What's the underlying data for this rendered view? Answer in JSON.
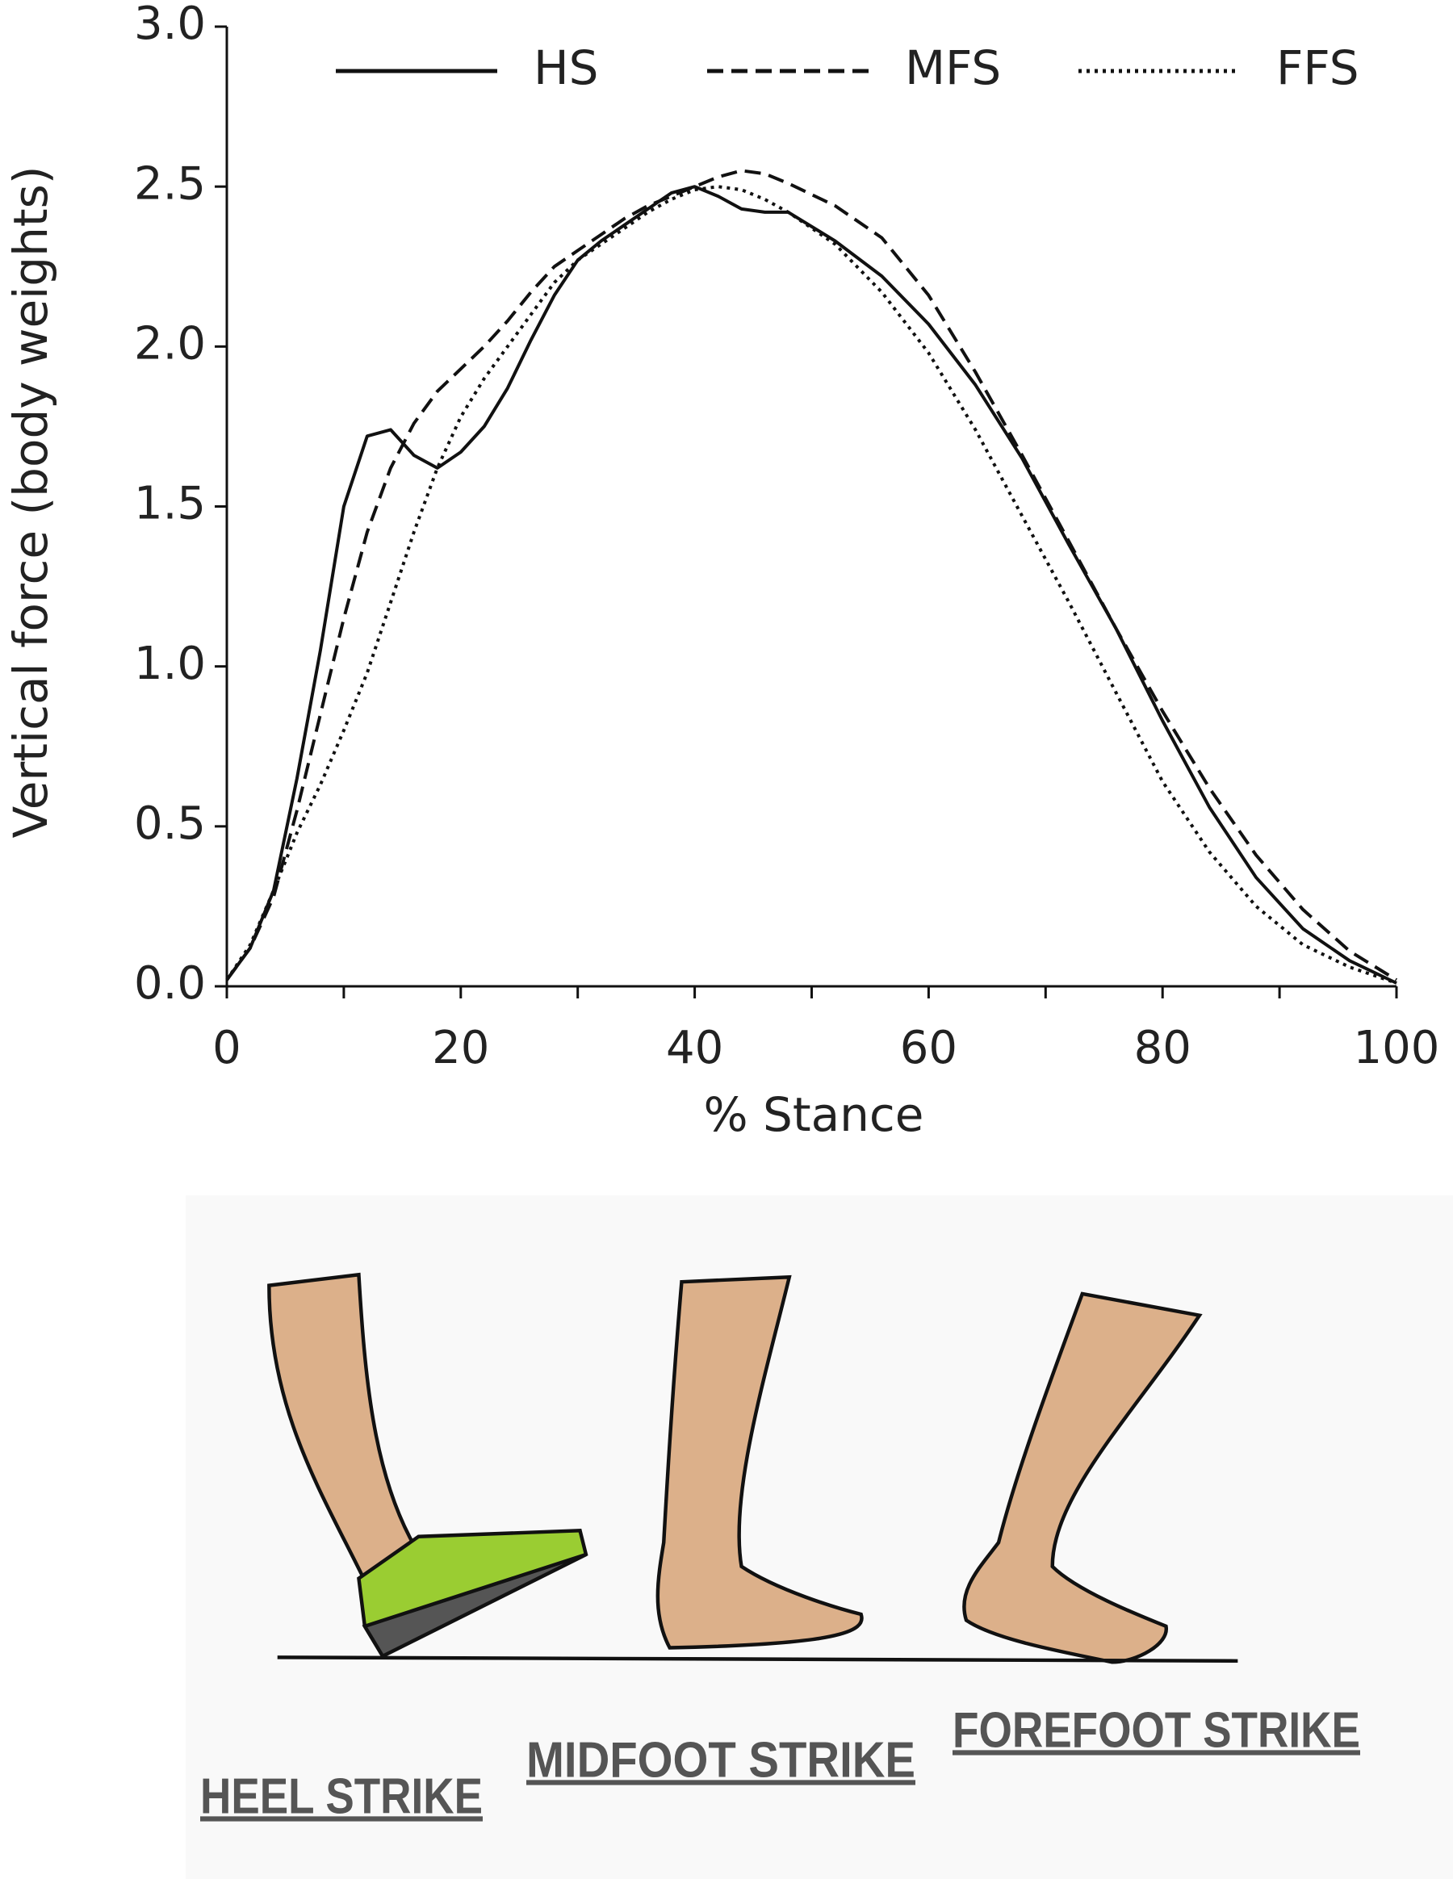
{
  "chart_data": {
    "type": "line",
    "x_label": "% Stance",
    "y_label": "Vertical force (body weights)",
    "x": [
      0,
      2,
      4,
      6,
      8,
      10,
      12,
      14,
      16,
      18,
      20,
      22,
      24,
      26,
      28,
      30,
      32,
      34,
      36,
      38,
      40,
      42,
      44,
      46,
      48,
      52,
      56,
      60,
      64,
      68,
      72,
      76,
      80,
      84,
      88,
      92,
      96,
      100
    ],
    "series": [
      {
        "name": "HS",
        "color": "#111111",
        "dash": "solid",
        "values": [
          0.02,
          0.12,
          0.3,
          0.65,
          1.05,
          1.5,
          1.72,
          1.74,
          1.66,
          1.62,
          1.67,
          1.75,
          1.87,
          2.02,
          2.16,
          2.27,
          2.33,
          2.38,
          2.43,
          2.48,
          2.5,
          2.47,
          2.43,
          2.42,
          2.42,
          2.33,
          2.22,
          2.07,
          1.88,
          1.65,
          1.38,
          1.12,
          0.83,
          0.56,
          0.34,
          0.18,
          0.08,
          0.01
        ]
      },
      {
        "name": "MFS",
        "color": "#111111",
        "dash": "dashed",
        "values": [
          0.02,
          0.12,
          0.28,
          0.55,
          0.85,
          1.15,
          1.42,
          1.62,
          1.76,
          1.86,
          1.93,
          2.0,
          2.08,
          2.17,
          2.25,
          2.3,
          2.35,
          2.4,
          2.44,
          2.47,
          2.5,
          2.53,
          2.55,
          2.54,
          2.51,
          2.44,
          2.34,
          2.16,
          1.92,
          1.66,
          1.39,
          1.12,
          0.86,
          0.62,
          0.41,
          0.24,
          0.11,
          0.02
        ]
      },
      {
        "name": "FFS",
        "color": "#111111",
        "dash": "dotted",
        "values": [
          0.02,
          0.13,
          0.3,
          0.48,
          0.63,
          0.8,
          0.98,
          1.2,
          1.42,
          1.62,
          1.78,
          1.9,
          2.0,
          2.1,
          2.2,
          2.27,
          2.32,
          2.37,
          2.42,
          2.46,
          2.49,
          2.5,
          2.49,
          2.46,
          2.42,
          2.32,
          2.17,
          1.98,
          1.74,
          1.47,
          1.2,
          0.92,
          0.64,
          0.42,
          0.25,
          0.13,
          0.06,
          0.01
        ]
      }
    ],
    "xlim": [
      0,
      100
    ],
    "xticks": [
      0,
      20,
      40,
      60,
      80,
      100
    ],
    "xminorticks": [
      10,
      30,
      50,
      70,
      90
    ],
    "ylim": [
      0,
      3
    ],
    "yticks": [
      {
        "value": 0,
        "label": "0.0"
      },
      0.5,
      {
        "value": 1,
        "label": "1.0"
      },
      1.5,
      {
        "value": 2,
        "label": "2.0"
      },
      2.5,
      {
        "value": 3,
        "label": "3.0"
      }
    ],
    "legend": "top"
  },
  "illustration": {
    "labels": [
      "HEEL STRIKE",
      "MIDFOOT STRIKE",
      "FOREFOOT STRIKE"
    ]
  }
}
